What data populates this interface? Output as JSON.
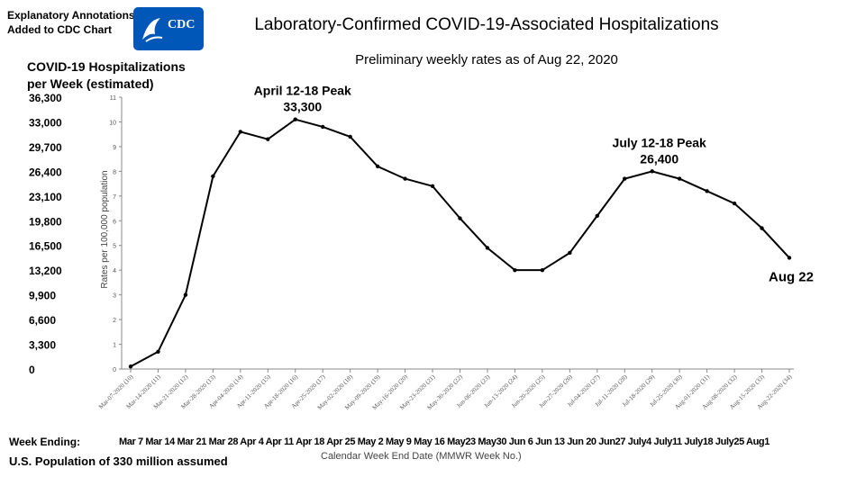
{
  "header": {
    "annotations_line1": "Explanatory Annotations",
    "annotations_line2": "Added to CDC Chart",
    "logo_text": "CDC",
    "logo_color": "#0057b8"
  },
  "footer": {
    "week_ending_label": "Week Ending:",
    "short_dates": "Mar 7 Mar 14 Mar 21 Mar 28 Apr 4 Apr 11 Apr 18 Apr 25 May 2 May 9 May 16 May23 May30 Jun 6 Jun 13 Jun 20 Jun27 July4 July11 July18 July25 Aug1",
    "population_note": "U.S. Population of 330 million assumed"
  },
  "chart_data": {
    "type": "line",
    "title": "Laboratory-Confirmed COVID-19-Associated Hospitalizations",
    "subtitle": "Preliminary weekly rates as of Aug 22, 2020",
    "xlabel": "Calendar Week End Date (MMWR Week No.)",
    "ylabel": "Rates per 100,000 population",
    "ylim": [
      0,
      11
    ],
    "grid": false,
    "y_ticks": [
      0,
      1,
      2,
      3,
      4,
      5,
      6,
      7,
      8,
      9,
      10,
      11
    ],
    "left_axis_title_line1": "COVID-19 Hospitalizations",
    "left_axis_title_line2": "per Week (estimated)",
    "left_axis_ticks": [
      "36,300",
      "33,000",
      "29,700",
      "26,400",
      "23,100",
      "19,800",
      "16,500",
      "13,200",
      "9,900",
      "6,600",
      "3,300",
      "0"
    ],
    "categories": [
      "Mar-07-2020 (10)",
      "Mar-14-2020 (11)",
      "Mar-21-2020 (12)",
      "Mar-28-2020 (13)",
      "Apr-04-2020 (14)",
      "Apr-11-2020 (15)",
      "Apr-18-2020 (16)",
      "Apr-25-2020 (17)",
      "May-02-2020 (18)",
      "May-09-2020 (19)",
      "May-16-2020 (20)",
      "May-23-2020 (21)",
      "May-30-2020 (22)",
      "Jun-06-2020 (23)",
      "Jun-13-2020 (24)",
      "Jun-20-2020 (25)",
      "Jun-27-2020 (26)",
      "Jul-04-2020 (27)",
      "Jul-11-2020 (28)",
      "Jul-18-2020 (29)",
      "Jul-25-2020 (30)",
      "Aug-01-2020 (31)",
      "Aug-08-2020 (32)",
      "Aug-15-2020 (33)",
      "Aug-22-2020 (34)"
    ],
    "values": [
      0.1,
      0.7,
      3.0,
      7.8,
      9.6,
      9.3,
      10.1,
      9.8,
      9.4,
      8.2,
      7.7,
      7.4,
      6.1,
      4.9,
      4.0,
      4.0,
      4.7,
      6.2,
      7.7,
      8.0,
      7.7,
      7.2,
      6.7,
      5.7,
      4.5
    ],
    "annotations": [
      {
        "label_line1": "April 12-18 Peak",
        "label_line2": "33,300",
        "index": 6
      },
      {
        "label_line1": "July 12-18 Peak",
        "label_line2": "26,400",
        "index": 19
      },
      {
        "label_line1": "Aug 22",
        "label_line2": "",
        "index": 24
      }
    ]
  }
}
